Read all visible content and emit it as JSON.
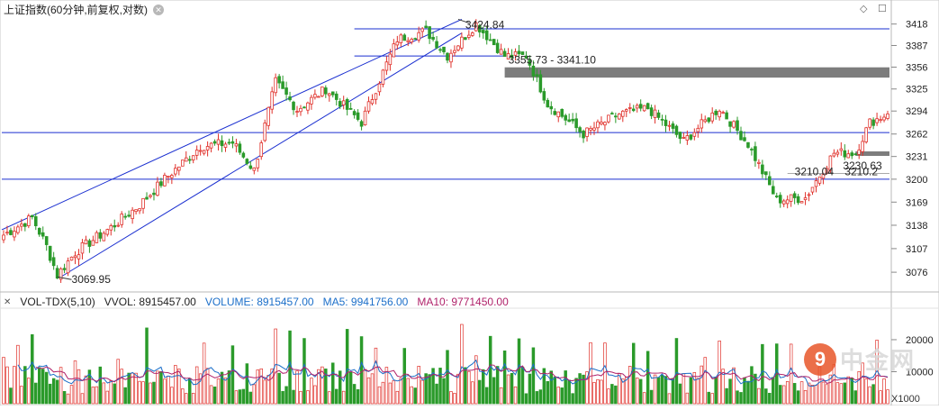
{
  "header": {
    "title": "上证指数(60分钟,前复权,对数)",
    "gear_glyph": "✕",
    "diamond_glyph": "◇",
    "window_glyph": "☐"
  },
  "volume_header": {
    "indicator": "VOL-TDX(5,10)",
    "vvol": "VVOL: 8915457.00",
    "volume": "VOLUME: 8915457.00",
    "ma5": "MA5: 9941756.00",
    "ma10": "MA10: 9771450.00",
    "x_glyph": "✕"
  },
  "chart_data": {
    "type": "candlestick",
    "price_axis": {
      "ticks": [
        3418,
        3387,
        3356,
        3325,
        3294,
        3262,
        3231,
        3200,
        3169,
        3138,
        3107,
        3076
      ],
      "range": [
        3055,
        3432
      ],
      "scale": "log"
    },
    "volume_axis": {
      "ticks": [
        20000,
        10000
      ],
      "unit_label": "X1000",
      "range": [
        0,
        29000
      ]
    },
    "annotations": [
      {
        "text": "3069.95",
        "price": 3069.95
      },
      {
        "text": "3424.84",
        "price": 3424.84
      },
      {
        "text": "3355.73 - 3341.10",
        "high": 3355.73,
        "low": 3341.1
      },
      {
        "text": "3230.63",
        "price": 3230.63
      },
      {
        "text": "3210.04",
        "price": 3210.04
      },
      {
        "text": "3210.2",
        "price": 3210.2
      }
    ],
    "horizontal_lines": [
      3411,
      3264,
      3200
    ],
    "zones": [
      {
        "high": 3355.73,
        "low": 3341.1
      }
    ],
    "candle_count": 248,
    "anchors": [
      {
        "i": 0,
        "p": 3125
      },
      {
        "i": 8,
        "p": 3148
      },
      {
        "i": 12,
        "p": 3110
      },
      {
        "i": 15,
        "p": 3072
      },
      {
        "i": 20,
        "p": 3102
      },
      {
        "i": 30,
        "p": 3135
      },
      {
        "i": 38,
        "p": 3165
      },
      {
        "i": 45,
        "p": 3200
      },
      {
        "i": 55,
        "p": 3245
      },
      {
        "i": 64,
        "p": 3250
      },
      {
        "i": 70,
        "p": 3212
      },
      {
        "i": 76,
        "p": 3335
      },
      {
        "i": 82,
        "p": 3296
      },
      {
        "i": 90,
        "p": 3325
      },
      {
        "i": 100,
        "p": 3278
      },
      {
        "i": 110,
        "p": 3396
      },
      {
        "i": 118,
        "p": 3408
      },
      {
        "i": 124,
        "p": 3372
      },
      {
        "i": 132,
        "p": 3418
      },
      {
        "i": 140,
        "p": 3372
      },
      {
        "i": 146,
        "p": 3372
      },
      {
        "i": 152,
        "p": 3304
      },
      {
        "i": 162,
        "p": 3262
      },
      {
        "i": 172,
        "p": 3290
      },
      {
        "i": 180,
        "p": 3298
      },
      {
        "i": 190,
        "p": 3252
      },
      {
        "i": 200,
        "p": 3298
      },
      {
        "i": 208,
        "p": 3248
      },
      {
        "i": 216,
        "p": 3172
      },
      {
        "i": 224,
        "p": 3175
      },
      {
        "i": 232,
        "p": 3236
      },
      {
        "i": 238,
        "p": 3236
      },
      {
        "i": 242,
        "p": 3278
      },
      {
        "i": 247,
        "p": 3290
      }
    ]
  }
}
